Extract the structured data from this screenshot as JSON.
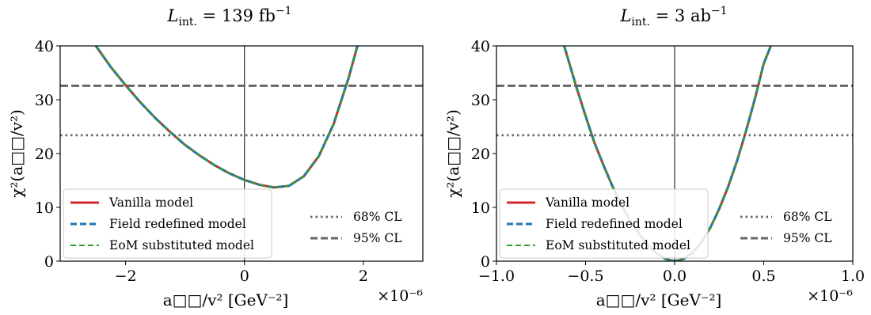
{
  "chart_data": [
    {
      "type": "line",
      "title": "L_int. = 139 fb^-1",
      "title_parts": {
        "main": "L",
        "sub": "int.",
        "rest": " = 139 fb",
        "sup": "−1"
      },
      "xlabel": "a□□/v² [GeV⁻²]",
      "ylabel": "χ²(a□□/v²)",
      "x_multiplier": "×10⁻⁶",
      "xlim": [
        -3.1,
        3.0
      ],
      "ylim": [
        0,
        40
      ],
      "xticks": [
        -2,
        0,
        2
      ],
      "xtick_labels": [
        "−2",
        "0",
        "2"
      ],
      "yticks": [
        0,
        10,
        20,
        30,
        40
      ],
      "ytick_labels": [
        "0",
        "10",
        "20",
        "30",
        "40"
      ],
      "grid": false,
      "vline_x": 0,
      "hlines": [
        {
          "name": "68% CL",
          "y": 23.4,
          "style": "dotted",
          "color": "#666666"
        },
        {
          "name": "95% CL",
          "y": 32.6,
          "style": "dashed",
          "color": "#666666"
        }
      ],
      "series": [
        {
          "name": "Vanilla model",
          "color": "#d62728",
          "style": "solid",
          "x": [
            -2.5,
            -2.25,
            -2.0,
            -1.75,
            -1.5,
            -1.25,
            -1.0,
            -0.75,
            -0.5,
            -0.25,
            0.0,
            0.25,
            0.5,
            0.75,
            1.0,
            1.25,
            1.5,
            1.75,
            1.9
          ],
          "y": [
            40.0,
            36.1,
            32.7,
            29.5,
            26.6,
            24.0,
            21.6,
            19.6,
            17.8,
            16.3,
            15.1,
            14.2,
            13.7,
            14.0,
            15.8,
            19.5,
            25.5,
            34.0,
            40.0
          ]
        },
        {
          "name": "Field redefined model",
          "color": "#1f77b4",
          "style": "dashed",
          "x": [
            -2.5,
            -2.25,
            -2.0,
            -1.75,
            -1.5,
            -1.25,
            -1.0,
            -0.75,
            -0.5,
            -0.25,
            0.0,
            0.25,
            0.5,
            0.75,
            1.0,
            1.25,
            1.5,
            1.75,
            1.9
          ],
          "y": [
            40.0,
            36.1,
            32.7,
            29.5,
            26.6,
            24.0,
            21.6,
            19.6,
            17.8,
            16.3,
            15.1,
            14.2,
            13.7,
            14.0,
            15.8,
            19.5,
            25.5,
            34.0,
            40.0
          ]
        },
        {
          "name": "EoM substituted model",
          "color": "#2ca02c",
          "style": "dashed",
          "x": [
            -2.5,
            -2.25,
            -2.0,
            -1.75,
            -1.5,
            -1.25,
            -1.0,
            -0.75,
            -0.5,
            -0.25,
            0.0,
            0.25,
            0.5,
            0.75,
            1.0,
            1.25,
            1.5,
            1.75,
            1.9
          ],
          "y": [
            40.0,
            36.1,
            32.7,
            29.5,
            26.6,
            24.0,
            21.6,
            19.6,
            17.8,
            16.3,
            15.1,
            14.2,
            13.7,
            14.0,
            15.8,
            19.5,
            25.5,
            34.0,
            40.0
          ]
        }
      ],
      "legend": "lower-left and lower-right"
    },
    {
      "type": "line",
      "title": "L_int. = 3 ab^-1",
      "title_parts": {
        "main": "L",
        "sub": "int.",
        "rest": " = 3 ab",
        "sup": "−1"
      },
      "xlabel": "a□□/v² [GeV⁻²]",
      "ylabel": "χ²(a□□/v²)",
      "x_multiplier": "×10⁻⁶",
      "xlim": [
        -1.0,
        1.0
      ],
      "ylim": [
        0,
        40
      ],
      "xticks": [
        -1.0,
        -0.5,
        0.0,
        0.5,
        1.0
      ],
      "xtick_labels": [
        "−1.0",
        "−0.5",
        "0.0",
        "0.5",
        "1.0"
      ],
      "yticks": [
        0,
        10,
        20,
        30,
        40
      ],
      "ytick_labels": [
        "0",
        "10",
        "20",
        "30",
        "40"
      ],
      "grid": false,
      "vline_x": 0,
      "hlines": [
        {
          "name": "68% CL",
          "y": 23.4,
          "style": "dotted",
          "color": "#666666"
        },
        {
          "name": "95% CL",
          "y": 32.6,
          "style": "dashed",
          "color": "#666666"
        }
      ],
      "series": [
        {
          "name": "Vanilla model",
          "color": "#d62728",
          "style": "solid",
          "x": [
            -0.62,
            -0.55,
            -0.5,
            -0.45,
            -0.4,
            -0.35,
            -0.3,
            -0.25,
            -0.2,
            -0.15,
            -0.1,
            -0.05,
            0.0,
            0.05,
            0.1,
            0.15,
            0.2,
            0.25,
            0.3,
            0.35,
            0.4,
            0.45,
            0.5,
            0.54
          ],
          "y": [
            40.0,
            32.2,
            27.0,
            22.0,
            17.9,
            14.0,
            10.5,
            7.6,
            5.1,
            3.0,
            1.4,
            0.4,
            0.0,
            0.4,
            1.6,
            3.5,
            6.2,
            9.7,
            13.8,
            18.6,
            24.1,
            30.1,
            36.7,
            40.0
          ]
        },
        {
          "name": "Field redefined model",
          "color": "#1f77b4",
          "style": "dashed",
          "x": [
            -0.62,
            -0.55,
            -0.5,
            -0.45,
            -0.4,
            -0.35,
            -0.3,
            -0.25,
            -0.2,
            -0.15,
            -0.1,
            -0.05,
            0.0,
            0.05,
            0.1,
            0.15,
            0.2,
            0.25,
            0.3,
            0.35,
            0.4,
            0.45,
            0.5,
            0.54
          ],
          "y": [
            40.0,
            32.2,
            27.0,
            22.0,
            17.9,
            14.0,
            10.5,
            7.6,
            5.1,
            3.0,
            1.4,
            0.4,
            0.0,
            0.4,
            1.6,
            3.5,
            6.2,
            9.7,
            13.8,
            18.6,
            24.1,
            30.1,
            36.7,
            40.0
          ]
        },
        {
          "name": "EoM substituted model",
          "color": "#2ca02c",
          "style": "dashed",
          "x": [
            -0.62,
            -0.55,
            -0.5,
            -0.45,
            -0.4,
            -0.35,
            -0.3,
            -0.25,
            -0.2,
            -0.15,
            -0.1,
            -0.05,
            0.0,
            0.05,
            0.1,
            0.15,
            0.2,
            0.25,
            0.3,
            0.35,
            0.4,
            0.45,
            0.5,
            0.54
          ],
          "y": [
            40.0,
            32.2,
            27.0,
            22.0,
            17.9,
            14.0,
            10.5,
            7.6,
            5.1,
            3.0,
            1.4,
            0.4,
            0.0,
            0.4,
            1.6,
            3.5,
            6.2,
            9.7,
            13.8,
            18.6,
            24.1,
            30.1,
            36.7,
            40.0
          ]
        }
      ],
      "legend": "lower-left and lower-right"
    }
  ]
}
